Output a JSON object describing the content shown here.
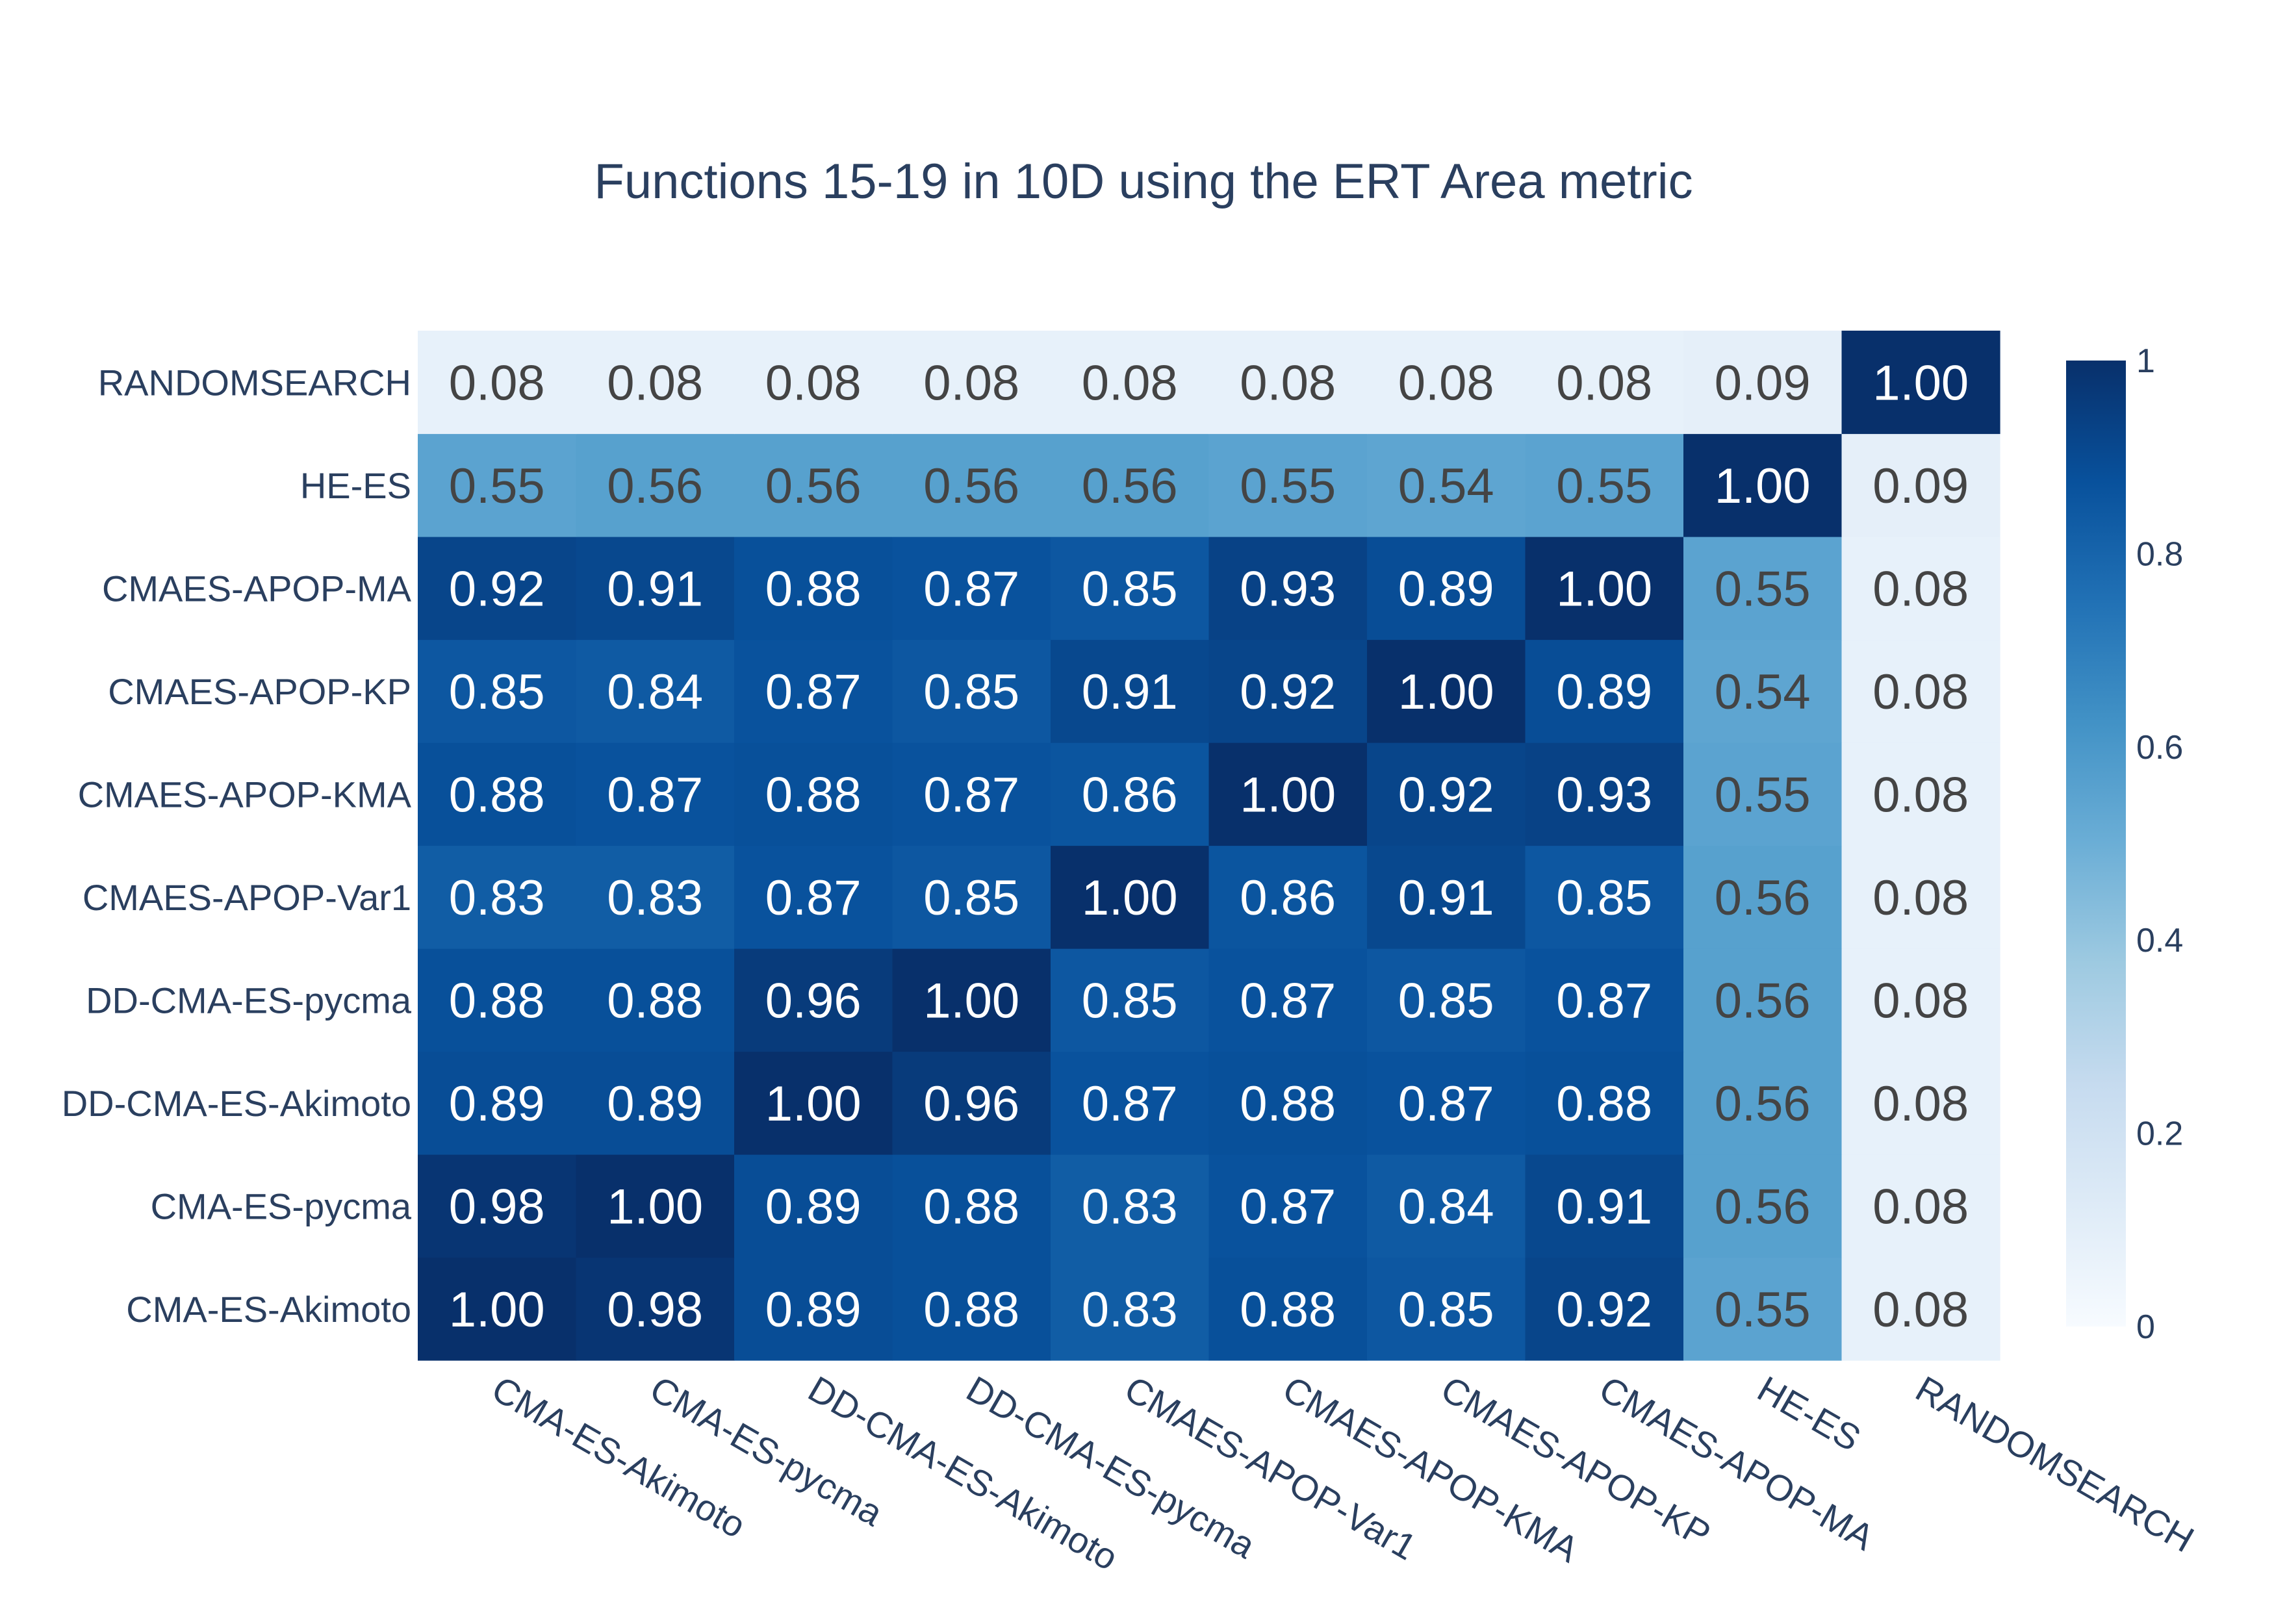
{
  "chart_data": {
    "type": "heatmap",
    "title": "Functions 15-19 in 10D using the ERT Area metric",
    "x_categories": [
      "CMA-ES-Akimoto",
      "CMA-ES-pycma",
      "DD-CMA-ES-Akimoto",
      "DD-CMA-ES-pycma",
      "CMAES-APOP-Var1",
      "CMAES-APOP-KMA",
      "CMAES-APOP-KP",
      "CMAES-APOP-MA",
      "HE-ES",
      "RANDOMSEARCH"
    ],
    "y_categories": [
      "CMA-ES-Akimoto",
      "CMA-ES-pycma",
      "DD-CMA-ES-Akimoto",
      "DD-CMA-ES-pycma",
      "CMAES-APOP-Var1",
      "CMAES-APOP-KMA",
      "CMAES-APOP-KP",
      "CMAES-APOP-MA",
      "HE-ES",
      "RANDOMSEARCH"
    ],
    "z": [
      [
        1.0,
        0.98,
        0.89,
        0.88,
        0.83,
        0.88,
        0.85,
        0.92,
        0.55,
        0.08
      ],
      [
        0.98,
        1.0,
        0.89,
        0.88,
        0.83,
        0.87,
        0.84,
        0.91,
        0.56,
        0.08
      ],
      [
        0.89,
        0.89,
        1.0,
        0.96,
        0.87,
        0.88,
        0.87,
        0.88,
        0.56,
        0.08
      ],
      [
        0.88,
        0.88,
        0.96,
        1.0,
        0.85,
        0.87,
        0.85,
        0.87,
        0.56,
        0.08
      ],
      [
        0.83,
        0.83,
        0.87,
        0.85,
        1.0,
        0.86,
        0.91,
        0.85,
        0.56,
        0.08
      ],
      [
        0.88,
        0.87,
        0.88,
        0.87,
        0.86,
        1.0,
        0.92,
        0.93,
        0.55,
        0.08
      ],
      [
        0.85,
        0.84,
        0.87,
        0.85,
        0.91,
        0.92,
        1.0,
        0.89,
        0.54,
        0.08
      ],
      [
        0.92,
        0.91,
        0.88,
        0.87,
        0.85,
        0.93,
        0.89,
        1.0,
        0.55,
        0.08
      ],
      [
        0.55,
        0.56,
        0.56,
        0.56,
        0.56,
        0.55,
        0.54,
        0.55,
        1.0,
        0.09
      ],
      [
        0.08,
        0.08,
        0.08,
        0.08,
        0.08,
        0.08,
        0.08,
        0.08,
        0.09,
        1.0
      ]
    ],
    "zlim": [
      0,
      1
    ],
    "colorscale": "Blues",
    "colorbar_ticks": [
      "0",
      "0.2",
      "0.4",
      "0.6",
      "0.8",
      "1"
    ],
    "colorbar_tick_values": [
      0,
      0.2,
      0.4,
      0.6,
      0.8,
      1
    ],
    "grid": false,
    "legend": "colorbar right"
  }
}
